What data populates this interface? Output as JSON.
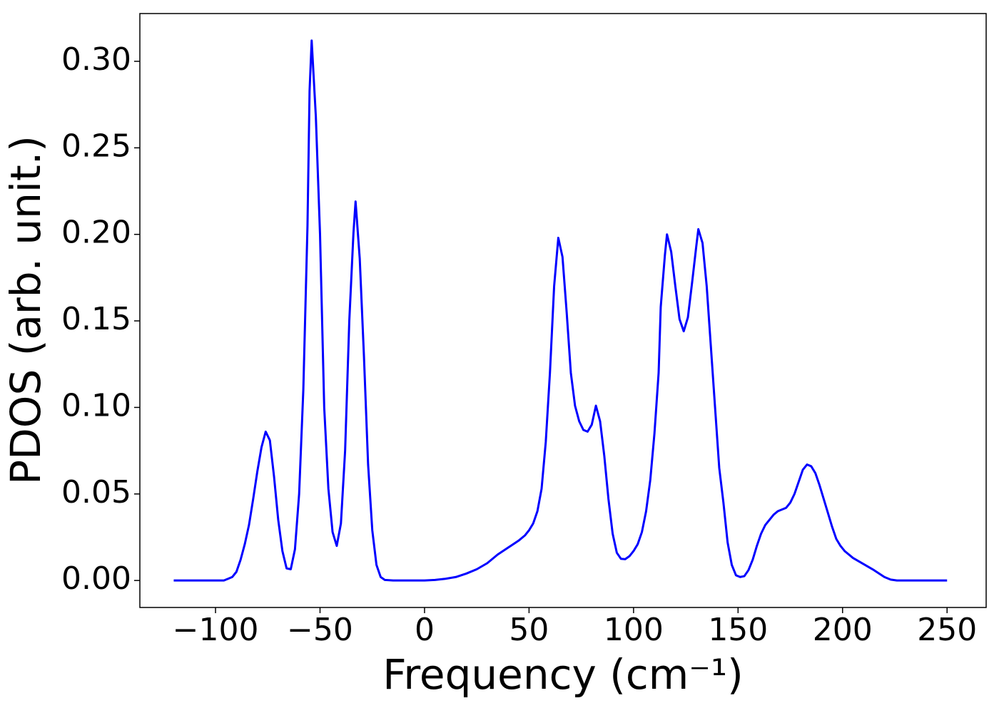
{
  "chart_data": {
    "type": "line",
    "x_label": "Frequency (cm⁻¹)",
    "y_label": "PDOS (arb. unit.)",
    "color": "#0000ff",
    "x": [
      -120,
      -96,
      -94,
      -92,
      -90,
      -88,
      -86,
      -84,
      -82,
      -80,
      -78,
      -76,
      -74,
      -72,
      -70,
      -68,
      -66,
      -64,
      -62,
      -60,
      -58,
      -56,
      -55,
      -54,
      -52,
      -50,
      -48,
      -46,
      -44,
      -42,
      -40,
      -38,
      -36,
      -34,
      -33,
      -31,
      -29,
      -27,
      -25,
      -23,
      -21,
      -19,
      -15,
      0,
      5,
      10,
      15,
      20,
      25,
      30,
      35,
      40,
      45,
      48,
      50,
      52,
      54,
      56,
      58,
      60,
      62,
      64,
      66,
      68,
      70,
      72,
      74,
      76,
      78,
      80,
      82,
      84,
      86,
      88,
      90,
      92,
      94,
      96,
      98,
      100,
      102,
      104,
      106,
      108,
      110,
      112,
      113,
      115,
      116,
      118,
      120,
      122,
      124,
      126,
      128,
      130,
      131,
      133,
      135,
      137,
      139,
      141,
      143,
      145,
      147,
      149,
      151,
      153,
      155,
      157,
      159,
      161,
      163,
      165,
      167,
      169,
      171,
      173,
      175,
      177,
      179,
      181,
      183,
      185,
      187,
      189,
      191,
      193,
      195,
      197,
      199,
      201,
      205,
      210,
      215,
      220,
      223,
      226,
      250
    ],
    "values": [
      0,
      0,
      0.001,
      0.002,
      0.005,
      0.012,
      0.021,
      0.032,
      0.047,
      0.063,
      0.077,
      0.086,
      0.081,
      0.06,
      0.035,
      0.017,
      0.007,
      0.0065,
      0.018,
      0.05,
      0.11,
      0.205,
      0.283,
      0.312,
      0.268,
      0.2,
      0.1,
      0.053,
      0.028,
      0.02,
      0.033,
      0.075,
      0.15,
      0.201,
      0.219,
      0.186,
      0.13,
      0.067,
      0.029,
      0.009,
      0.002,
      0.0003,
      0,
      0,
      0.0003,
      0.001,
      0.002,
      0.004,
      0.0065,
      0.01,
      0.015,
      0.019,
      0.023,
      0.026,
      0.029,
      0.033,
      0.04,
      0.053,
      0.08,
      0.12,
      0.17,
      0.198,
      0.187,
      0.155,
      0.12,
      0.101,
      0.092,
      0.087,
      0.086,
      0.09,
      0.101,
      0.092,
      0.072,
      0.047,
      0.027,
      0.016,
      0.0125,
      0.0123,
      0.014,
      0.017,
      0.021,
      0.028,
      0.04,
      0.058,
      0.085,
      0.12,
      0.158,
      0.188,
      0.2,
      0.19,
      0.17,
      0.151,
      0.144,
      0.152,
      0.172,
      0.193,
      0.203,
      0.195,
      0.17,
      0.135,
      0.1,
      0.065,
      0.045,
      0.022,
      0.009,
      0.003,
      0.002,
      0.0025,
      0.006,
      0.012,
      0.02,
      0.027,
      0.032,
      0.035,
      0.038,
      0.04,
      0.041,
      0.042,
      0.045,
      0.05,
      0.057,
      0.064,
      0.067,
      0.066,
      0.062,
      0.055,
      0.047,
      0.039,
      0.031,
      0.024,
      0.02,
      0.017,
      0.013,
      0.0095,
      0.006,
      0.002,
      0.0005,
      0,
      0
    ],
    "xlim": [
      -136.2,
      268.7
    ],
    "ylim": [
      -0.0156,
      0.3276
    ],
    "xticks": [
      {
        "value": -100,
        "label": "−100"
      },
      {
        "value": -50,
        "label": "−50"
      },
      0,
      50,
      100,
      150,
      200,
      250
    ],
    "yticks": [
      {
        "value": 0,
        "label": "0.00"
      },
      {
        "value": 0.05,
        "label": "0.05"
      },
      {
        "value": 0.1,
        "label": "0.10"
      },
      {
        "value": 0.15,
        "label": "0.15"
      },
      {
        "value": 0.2,
        "label": "0.20"
      },
      {
        "value": 0.25,
        "label": "0.25"
      },
      {
        "value": 0.3,
        "label": "0.30"
      }
    ],
    "grid": false
  }
}
